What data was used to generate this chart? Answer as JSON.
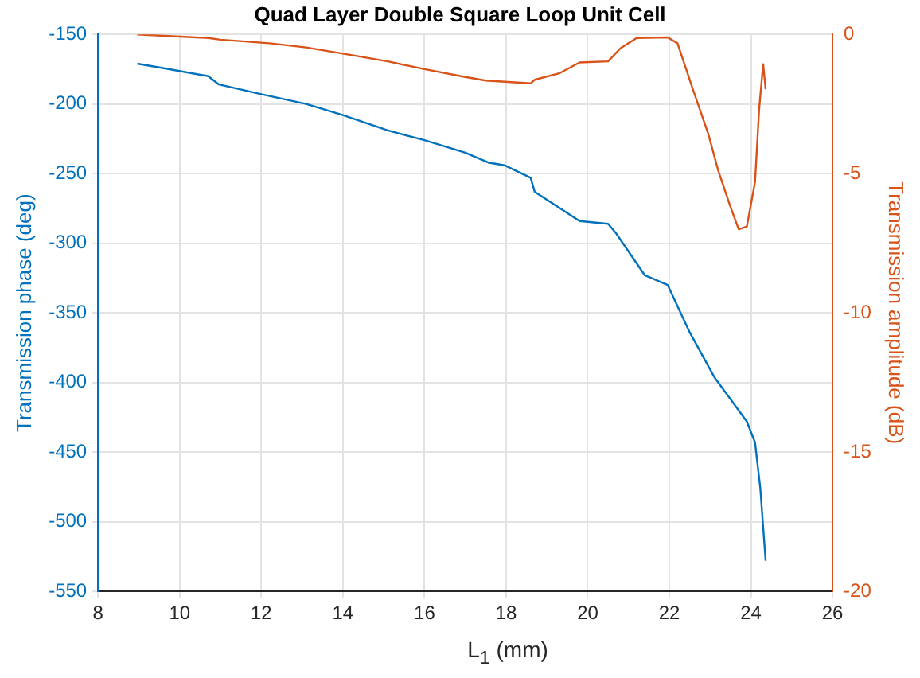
{
  "chart_data": {
    "type": "line",
    "title": "Quad Layer Double Square Loop Unit Cell",
    "xlabel": "L$_{1}$ (mm)",
    "ylabel": "Transmission phase (deg)",
    "y2label": "Transmission amplitude (dB)",
    "xlim": [
      8,
      26
    ],
    "xticks": [
      8,
      10,
      12,
      14,
      16,
      18,
      20,
      22,
      24,
      26
    ],
    "ylim": [
      -550,
      -150
    ],
    "yticks": [
      -550,
      -500,
      -450,
      -400,
      -350,
      -300,
      -250,
      -200,
      -150
    ],
    "y2lim": [
      -20,
      0
    ],
    "y2ticks": [
      -20,
      -15,
      -10,
      -5,
      0
    ],
    "grid": true,
    "series": [
      {
        "color": "#0072bd",
        "x": [
          8.96,
          9.56,
          10.7,
          10.96,
          12.0,
          13.1,
          14.0,
          15.1,
          16.0,
          17.0,
          17.56,
          17.96,
          18.6,
          18.7,
          19.8,
          20.5,
          20.7,
          21.4,
          21.96,
          22.5,
          23.1,
          23.9,
          24.1,
          24.23,
          24.36
        ],
        "values": [
          -171,
          -174,
          -180,
          -186,
          -193,
          -200,
          -208,
          -219,
          -226,
          -235,
          -242,
          -244,
          -253,
          -263,
          -284,
          -286,
          -293,
          -323,
          -330,
          -364,
          -396,
          -428,
          -443,
          -476,
          -528
        ]
      },
      {
        "color": "#d95319",
        "axis": "y2",
        "x": [
          8.96,
          10.7,
          11.0,
          12.2,
          13.1,
          14.0,
          15.1,
          16.0,
          17.0,
          17.5,
          18.6,
          18.7,
          19.3,
          19.8,
          20.5,
          20.8,
          21.2,
          21.96,
          22.2,
          22.56,
          22.96,
          23.2,
          23.5,
          23.7,
          23.9,
          24.1,
          24.2,
          24.3,
          24.36
        ],
        "values": [
          0,
          -0.13,
          -0.19,
          -0.32,
          -0.47,
          -0.69,
          -0.97,
          -1.25,
          -1.53,
          -1.66,
          -1.76,
          -1.63,
          -1.4,
          -1.01,
          -0.97,
          -0.5,
          -0.13,
          -0.11,
          -0.32,
          -1.9,
          -3.6,
          -4.9,
          -6.2,
          -7.0,
          -6.9,
          -5.3,
          -2.7,
          -1.07,
          -1.97
        ]
      }
    ]
  }
}
